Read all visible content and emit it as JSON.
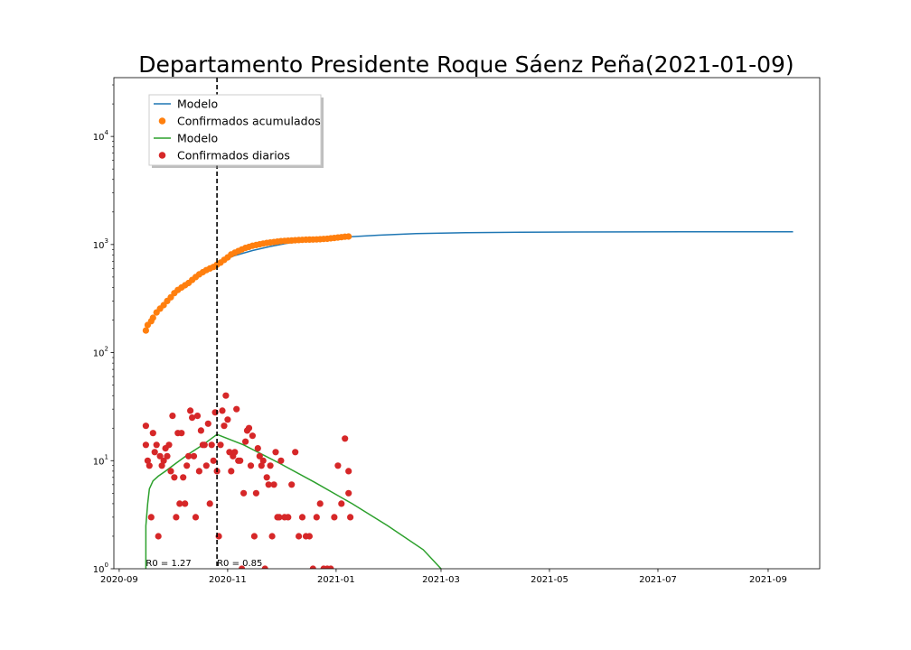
{
  "chart_data": {
    "type": "scatter",
    "title": "Departamento Presidente Roque Sáenz Peña(2021-01-09)",
    "xlabel": "",
    "ylabel": "",
    "yscale": "log",
    "xlim": [
      "2020-08-29",
      "2021-09-30"
    ],
    "ylim": [
      1,
      35000
    ],
    "x_ticks": [
      "2020-09",
      "2020-11",
      "2021-01",
      "2021-03",
      "2021-05",
      "2021-07",
      "2021-09"
    ],
    "y_ticks": [
      {
        "value": 1,
        "base": "10",
        "exp": "0"
      },
      {
        "value": 10,
        "base": "10",
        "exp": "1"
      },
      {
        "value": 100,
        "base": "10",
        "exp": "2"
      },
      {
        "value": 1000,
        "base": "10",
        "exp": "3"
      },
      {
        "value": 10000,
        "base": "10",
        "exp": "4"
      }
    ],
    "legend": {
      "position": "top-left",
      "entries": [
        {
          "label": "Modelo",
          "kind": "line",
          "color": "#1f77b4"
        },
        {
          "label": "Confirmados acumulados",
          "kind": "marker",
          "color": "#ff7f0e"
        },
        {
          "label": "Modelo",
          "kind": "line",
          "color": "#2ca02c"
        },
        {
          "label": "Confirmados diarios",
          "kind": "marker",
          "color": "#d62728"
        }
      ]
    },
    "vline": {
      "x": "2020-10-26",
      "style": "dashed",
      "color": "#000000"
    },
    "annotations": [
      {
        "text": "R0 = 1.27",
        "x": "2020-09-16",
        "y": 1.1
      },
      {
        "text": "R0 = 0.85",
        "x": "2020-10-26",
        "y": 1.1
      }
    ],
    "series": [
      {
        "name": "Modelo",
        "kind": "line",
        "color": "#1f77b4",
        "x": [
          "2020-10-26",
          "2020-11-05",
          "2020-11-15",
          "2020-11-25",
          "2020-12-05",
          "2020-12-20",
          "2021-01-05",
          "2021-01-25",
          "2021-02-15",
          "2021-03-15",
          "2021-04-15",
          "2021-05-15",
          "2021-06-15",
          "2021-07-15",
          "2021-08-15",
          "2021-09-15"
        ],
        "y": [
          680,
          790,
          880,
          960,
          1030,
          1100,
          1170,
          1220,
          1260,
          1285,
          1300,
          1305,
          1308,
          1310,
          1311,
          1312
        ]
      },
      {
        "name": "Confirmados acumulados",
        "kind": "scatter",
        "color": "#ff7f0e",
        "x": [
          "2020-09-16",
          "2020-09-17",
          "2020-09-19",
          "2020-09-20",
          "2020-09-22",
          "2020-09-24",
          "2020-09-26",
          "2020-09-28",
          "2020-09-30",
          "2020-10-02",
          "2020-10-04",
          "2020-10-06",
          "2020-10-08",
          "2020-10-10",
          "2020-10-12",
          "2020-10-14",
          "2020-10-16",
          "2020-10-18",
          "2020-10-20",
          "2020-10-22",
          "2020-10-24",
          "2020-10-26",
          "2020-10-28",
          "2020-10-30",
          "2020-11-01",
          "2020-11-03",
          "2020-11-05",
          "2020-11-07",
          "2020-11-09",
          "2020-11-11",
          "2020-11-13",
          "2020-11-15",
          "2020-11-17",
          "2020-11-19",
          "2020-11-21",
          "2020-11-23",
          "2020-11-25",
          "2020-11-27",
          "2020-11-29",
          "2020-12-01",
          "2020-12-03",
          "2020-12-05",
          "2020-12-07",
          "2020-12-09",
          "2020-12-11",
          "2020-12-13",
          "2020-12-15",
          "2020-12-17",
          "2020-12-19",
          "2020-12-21",
          "2020-12-23",
          "2020-12-25",
          "2020-12-27",
          "2020-12-29",
          "2020-12-31",
          "2021-01-02",
          "2021-01-04",
          "2021-01-06",
          "2021-01-08"
        ],
        "y": [
          160,
          180,
          195,
          210,
          235,
          255,
          275,
          300,
          325,
          355,
          380,
          400,
          420,
          440,
          470,
          500,
          530,
          555,
          580,
          600,
          620,
          650,
          680,
          720,
          760,
          810,
          840,
          870,
          900,
          930,
          950,
          975,
          990,
          1005,
          1020,
          1035,
          1045,
          1055,
          1065,
          1075,
          1080,
          1085,
          1090,
          1095,
          1100,
          1105,
          1108,
          1110,
          1112,
          1115,
          1120,
          1125,
          1130,
          1140,
          1150,
          1160,
          1170,
          1180,
          1185
        ]
      },
      {
        "name": "Modelo",
        "kind": "line",
        "color": "#2ca02c",
        "x": [
          "2020-09-16",
          "2020-09-16",
          "2020-09-17",
          "2020-09-18",
          "2020-09-20",
          "2020-09-23",
          "2020-09-27",
          "2020-10-03",
          "2020-10-10",
          "2020-10-18",
          "2020-10-26",
          "2020-11-10",
          "2020-11-30",
          "2020-12-20",
          "2021-01-10",
          "2021-01-30",
          "2021-02-19",
          "2021-03-01"
        ],
        "y": [
          1,
          2.5,
          4,
          5.5,
          6.5,
          7.2,
          8,
          9.5,
          11.5,
          14,
          17.5,
          14,
          9.5,
          6.3,
          4,
          2.5,
          1.5,
          1.0
        ]
      },
      {
        "name": "Confirmados diarios",
        "kind": "scatter",
        "color": "#d62728",
        "x": [
          "2020-09-16",
          "2020-09-16",
          "2020-09-17",
          "2020-09-18",
          "2020-09-19",
          "2020-09-20",
          "2020-09-21",
          "2020-09-22",
          "2020-09-23",
          "2020-09-24",
          "2020-09-25",
          "2020-09-26",
          "2020-09-27",
          "2020-09-28",
          "2020-09-29",
          "2020-09-30",
          "2020-10-01",
          "2020-10-02",
          "2020-10-03",
          "2020-10-04",
          "2020-10-05",
          "2020-10-06",
          "2020-10-07",
          "2020-10-08",
          "2020-10-09",
          "2020-10-10",
          "2020-10-11",
          "2020-10-12",
          "2020-10-13",
          "2020-10-14",
          "2020-10-15",
          "2020-10-16",
          "2020-10-17",
          "2020-10-18",
          "2020-10-19",
          "2020-10-20",
          "2020-10-21",
          "2020-10-22",
          "2020-10-23",
          "2020-10-24",
          "2020-10-25",
          "2020-10-26",
          "2020-10-27",
          "2020-10-28",
          "2020-10-29",
          "2020-10-30",
          "2020-10-31",
          "2020-11-01",
          "2020-11-02",
          "2020-11-03",
          "2020-11-04",
          "2020-11-05",
          "2020-11-06",
          "2020-11-07",
          "2020-11-08",
          "2020-11-09",
          "2020-11-10",
          "2020-11-11",
          "2020-11-12",
          "2020-11-13",
          "2020-11-14",
          "2020-11-15",
          "2020-11-16",
          "2020-11-17",
          "2020-11-18",
          "2020-11-19",
          "2020-11-20",
          "2020-11-21",
          "2020-11-22",
          "2020-11-23",
          "2020-11-24",
          "2020-11-25",
          "2020-11-26",
          "2020-11-27",
          "2020-11-28",
          "2020-11-29",
          "2020-11-30",
          "2020-12-01",
          "2020-12-03",
          "2020-12-05",
          "2020-12-07",
          "2020-12-09",
          "2020-12-11",
          "2020-12-13",
          "2020-12-15",
          "2020-12-17",
          "2020-12-19",
          "2020-12-21",
          "2020-12-23",
          "2020-12-25",
          "2020-12-27",
          "2020-12-29",
          "2020-12-31",
          "2021-01-02",
          "2021-01-04",
          "2021-01-06",
          "2021-01-08",
          "2021-01-08",
          "2021-01-09"
        ],
        "y": [
          14,
          21,
          10,
          9,
          3,
          18,
          12,
          14,
          2,
          11,
          9,
          10,
          13,
          11,
          14,
          8,
          26,
          7,
          3,
          18,
          4,
          18,
          7,
          4,
          9,
          11,
          29,
          25,
          11,
          3,
          26,
          8,
          19,
          14,
          14,
          9,
          22,
          4,
          14,
          10,
          28,
          8,
          2,
          14,
          29,
          21,
          40,
          24,
          12,
          8,
          11,
          12,
          30,
          10,
          10,
          1,
          5,
          15,
          19,
          20,
          9,
          17,
          2,
          5,
          13,
          11,
          9,
          10,
          1,
          7,
          6,
          9,
          2,
          6,
          12,
          3,
          3,
          10,
          3,
          3,
          6,
          12,
          2,
          3,
          2,
          2,
          1,
          3,
          4,
          1,
          1,
          1,
          3,
          9,
          4,
          16,
          8,
          5,
          3
        ]
      }
    ]
  }
}
